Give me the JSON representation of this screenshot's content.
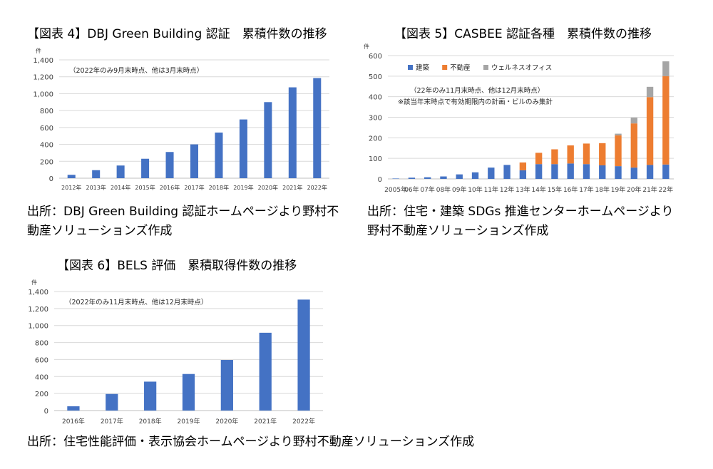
{
  "chart_data": [
    {
      "type": "bar",
      "title": "【図表 4】DBJ Green Building 認証　累積件数の推移",
      "ylabel": "件",
      "ylim": [
        0,
        1400
      ],
      "yticks": [
        "0",
        "200",
        "400",
        "600",
        "800",
        "1,000",
        "1,200",
        "1,400"
      ],
      "note": "（2022年のみ9月末時点、他は3月末時点）",
      "categories": [
        "2012年",
        "2013年",
        "2014年",
        "2015年",
        "2016年",
        "2017年",
        "2018年",
        "2019年",
        "2020年",
        "2021年",
        "2022年"
      ],
      "values": [
        40,
        95,
        150,
        230,
        310,
        400,
        540,
        695,
        900,
        1075,
        1185
      ],
      "color": "#4472C4",
      "grid": true,
      "source": "出所：DBJ Green Building 認証ホームページより野村不動産ソリューションズ作成"
    },
    {
      "type": "bar",
      "stacked": true,
      "title": "【図表 5】CASBEE 認証各種　累積件数の推移",
      "ylabel": "件",
      "ylim": [
        0,
        600
      ],
      "yticks": [
        "0",
        "100",
        "200",
        "300",
        "400",
        "500",
        "600"
      ],
      "notes": [
        "（22年のみ11月末時点、他は12月末時点）",
        "※該当年末時点で有効期限内の計画・ビルのみ集計"
      ],
      "categories": [
        "2005年",
        "06年",
        "07年",
        "08年",
        "09年",
        "10年",
        "11年",
        "12年",
        "13年",
        "14年",
        "15年",
        "16年",
        "17年",
        "18年",
        "19年",
        "20年",
        "21年",
        "22年"
      ],
      "series": [
        {
          "name": "建築",
          "color": "#4472C4",
          "values": [
            2,
            6,
            8,
            12,
            22,
            32,
            55,
            68,
            42,
            72,
            72,
            75,
            72,
            66,
            62,
            55,
            68,
            70
          ]
        },
        {
          "name": "不動産",
          "color": "#ED7D31",
          "values": [
            0,
            0,
            0,
            0,
            0,
            0,
            0,
            0,
            38,
            55,
            72,
            88,
            100,
            108,
            150,
            215,
            330,
            430
          ]
        },
        {
          "name": "ウェルネスオフィス",
          "color": "#A5A5A5",
          "values": [
            0,
            0,
            0,
            0,
            0,
            0,
            0,
            0,
            0,
            0,
            0,
            0,
            0,
            0,
            8,
            28,
            50,
            72
          ]
        }
      ],
      "legend": "top-left",
      "grid": true,
      "source": "出所：住宅・建築 SDGs 推進センターホームページより野村不動産ソリューションズ作成"
    },
    {
      "type": "bar",
      "title": "【図表 6】BELS 評価　累積取得件数の推移",
      "ylabel": "件",
      "ylim": [
        0,
        1400
      ],
      "yticks": [
        "0",
        "200",
        "400",
        "600",
        "800",
        "1,000",
        "1,200",
        "1,400"
      ],
      "note": "（2022年のみ11月末時点、他は12月末時点）",
      "categories": [
        "2016年",
        "2017年",
        "2018年",
        "2019年",
        "2020年",
        "2021年",
        "2022年"
      ],
      "values": [
        50,
        195,
        340,
        430,
        595,
        915,
        1305
      ],
      "color": "#4472C4",
      "grid": true,
      "source": "出所：住宅性能評価・表示協会ホームページより野村不動産ソリューションズ作成"
    }
  ]
}
